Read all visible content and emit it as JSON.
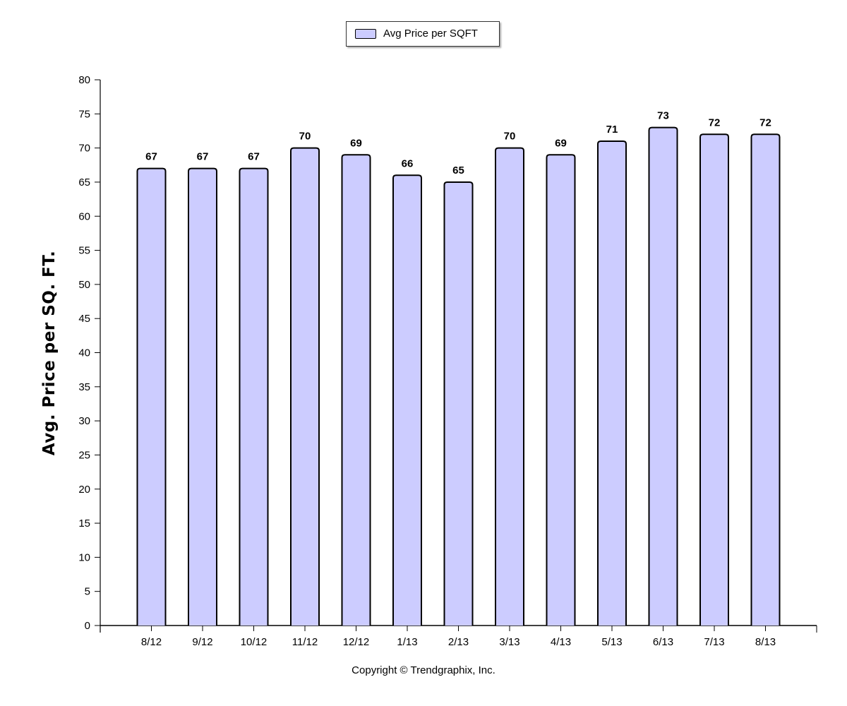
{
  "chart_data": {
    "type": "bar",
    "title": "",
    "xlabel": "",
    "ylabel": "Avg. Price per SQ. FT.",
    "legend": {
      "position": "top-center"
    },
    "categories": [
      "8/12",
      "9/12",
      "10/12",
      "11/12",
      "12/12",
      "1/13",
      "2/13",
      "3/13",
      "4/13",
      "5/13",
      "6/13",
      "7/13",
      "8/13"
    ],
    "series": [
      {
        "name": "Avg Price per SQFT",
        "values": [
          67,
          67,
          67,
          70,
          69,
          66,
          65,
          70,
          69,
          71,
          73,
          72,
          72
        ],
        "color": "#ccccff"
      }
    ],
    "ylim": [
      0,
      80
    ],
    "yticks": [
      0,
      5,
      10,
      15,
      20,
      25,
      30,
      35,
      40,
      45,
      50,
      55,
      60,
      65,
      70,
      75,
      80
    ],
    "grid": false,
    "data_labels": true
  },
  "footer": {
    "copyright": "Copyright © Trendgraphix, Inc."
  }
}
